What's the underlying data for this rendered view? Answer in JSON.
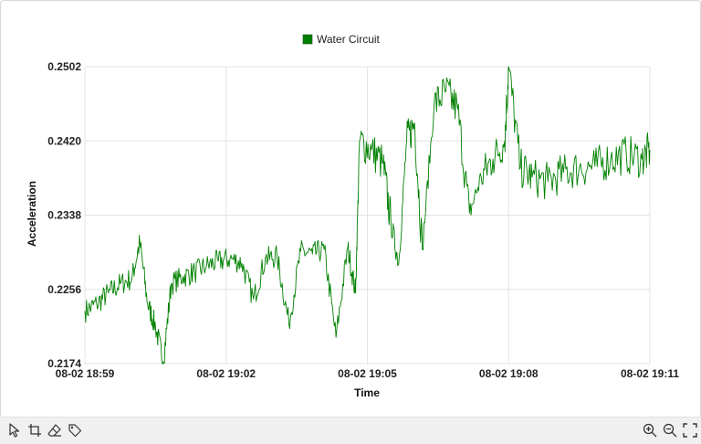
{
  "chart_data": {
    "type": "line",
    "title": "",
    "xlabel": "Time",
    "ylabel": "Acceleration",
    "x_tick_labels": [
      "08-02 18:59",
      "08-02 19:02",
      "08-02 19:05",
      "08-02 19:08",
      "08-02 19:11"
    ],
    "y_tick_labels": [
      "0.2502",
      "0.2420",
      "0.2338",
      "0.2256",
      "0.2174"
    ],
    "xlim": [
      "08-02 18:59",
      "08-02 19:11"
    ],
    "ylim": [
      0.2174,
      0.2502
    ],
    "grid": true,
    "legend": "top-center",
    "series": [
      {
        "name": "Water Circuit",
        "color": "#008000",
        "points": [
          [
            "08-02 18:59:00",
            0.2232
          ],
          [
            "08-02 18:59:15",
            0.224
          ],
          [
            "08-02 18:59:30",
            0.2252
          ],
          [
            "08-02 18:59:45",
            0.2262
          ],
          [
            "08-02 19:00:00",
            0.2268
          ],
          [
            "08-02 19:00:10",
            0.2308
          ],
          [
            "08-02 19:00:20",
            0.224
          ],
          [
            "08-02 19:00:30",
            0.2215
          ],
          [
            "08-02 19:00:40",
            0.2176
          ],
          [
            "08-02 19:00:50",
            0.2262
          ],
          [
            "08-02 19:01:05",
            0.227
          ],
          [
            "08-02 19:01:20",
            0.2275
          ],
          [
            "08-02 19:01:35",
            0.2282
          ],
          [
            "08-02 19:01:50",
            0.2287
          ],
          [
            "08-02 19:02:05",
            0.229
          ],
          [
            "08-02 19:02:20",
            0.2285
          ],
          [
            "08-02 19:02:35",
            0.2245
          ],
          [
            "08-02 19:02:50",
            0.229
          ],
          [
            "08-02 19:03:05",
            0.2292
          ],
          [
            "08-02 19:03:20",
            0.2218
          ],
          [
            "08-02 19:03:35",
            0.2298
          ],
          [
            "08-02 19:03:50",
            0.2295
          ],
          [
            "08-02 19:04:05",
            0.23
          ],
          [
            "08-02 19:04:20",
            0.2203
          ],
          [
            "08-02 19:04:35",
            0.2302
          ],
          [
            "08-02 19:04:45",
            0.2252
          ],
          [
            "08-02 19:04:50",
            0.242
          ],
          [
            "08-02 19:05:05",
            0.241
          ],
          [
            "08-02 19:05:20",
            0.2395
          ],
          [
            "08-02 19:05:30",
            0.233
          ],
          [
            "08-02 19:05:40",
            0.2285
          ],
          [
            "08-02 19:05:50",
            0.242
          ],
          [
            "08-02 19:06:00",
            0.244
          ],
          [
            "08-02 19:06:10",
            0.23
          ],
          [
            "08-02 19:06:25",
            0.246
          ],
          [
            "08-02 19:06:40",
            0.2475
          ],
          [
            "08-02 19:06:55",
            0.2455
          ],
          [
            "08-02 19:07:10",
            0.234
          ],
          [
            "08-02 19:07:25",
            0.238
          ],
          [
            "08-02 19:07:40",
            0.24
          ],
          [
            "08-02 19:07:55",
            0.242
          ],
          [
            "08-02 19:08:00",
            0.2502
          ],
          [
            "08-02 19:08:15",
            0.239
          ],
          [
            "08-02 19:08:30",
            0.238
          ],
          [
            "08-02 19:08:50",
            0.2375
          ],
          [
            "08-02 19:09:10",
            0.2385
          ],
          [
            "08-02 19:09:30",
            0.239
          ],
          [
            "08-02 19:09:50",
            0.2392
          ],
          [
            "08-02 19:10:10",
            0.24
          ],
          [
            "08-02 19:10:30",
            0.2405
          ],
          [
            "08-02 19:10:50",
            0.24
          ],
          [
            "08-02 19:11:00",
            0.241
          ]
        ]
      }
    ]
  },
  "legend": {
    "label": "Water Circuit",
    "swatch_color": "#008000"
  },
  "toolbar": {
    "left_icons": [
      "pointer-icon",
      "crop-icon",
      "eraser-icon",
      "tag-icon"
    ],
    "right_icons": [
      "zoom-in-icon",
      "zoom-out-icon",
      "fullscreen-icon"
    ]
  }
}
